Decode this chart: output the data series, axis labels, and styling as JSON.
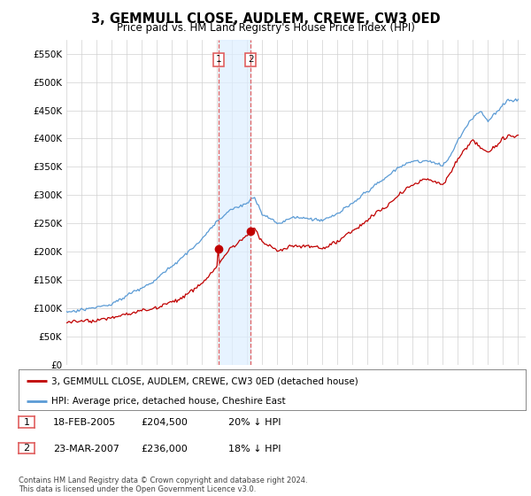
{
  "title": "3, GEMMULL CLOSE, AUDLEM, CREWE, CW3 0ED",
  "subtitle": "Price paid vs. HM Land Registry's House Price Index (HPI)",
  "title_fontsize": 10.5,
  "subtitle_fontsize": 8.5,
  "ylabel_ticks": [
    "£0",
    "£50K",
    "£100K",
    "£150K",
    "£200K",
    "£250K",
    "£300K",
    "£350K",
    "£400K",
    "£450K",
    "£500K",
    "£550K"
  ],
  "ytick_values": [
    0,
    50000,
    100000,
    150000,
    200000,
    250000,
    300000,
    350000,
    400000,
    450000,
    500000,
    550000
  ],
  "ylim": [
    0,
    575000
  ],
  "xlim_start": 1995.0,
  "xlim_end": 2025.5,
  "hpi_color": "#5b9bd5",
  "price_color": "#c00000",
  "sale1_x": 2005.125,
  "sale1_y": 204500,
  "sale2_x": 2007.23,
  "sale2_y": 236000,
  "vline_color": "#e06060",
  "shade_color": "#ddeeff",
  "legend_label_price": "3, GEMMULL CLOSE, AUDLEM, CREWE, CW3 0ED (detached house)",
  "legend_label_hpi": "HPI: Average price, detached house, Cheshire East",
  "sale1_label": "1",
  "sale2_label": "2",
  "sale1_date": "18-FEB-2005",
  "sale1_price": "£204,500",
  "sale1_pct": "20% ↓ HPI",
  "sale2_date": "23-MAR-2007",
  "sale2_price": "£236,000",
  "sale2_pct": "18% ↓ HPI",
  "footer": "Contains HM Land Registry data © Crown copyright and database right 2024.\nThis data is licensed under the Open Government Licence v3.0.",
  "background_color": "#ffffff",
  "grid_color": "#d0d0d0"
}
